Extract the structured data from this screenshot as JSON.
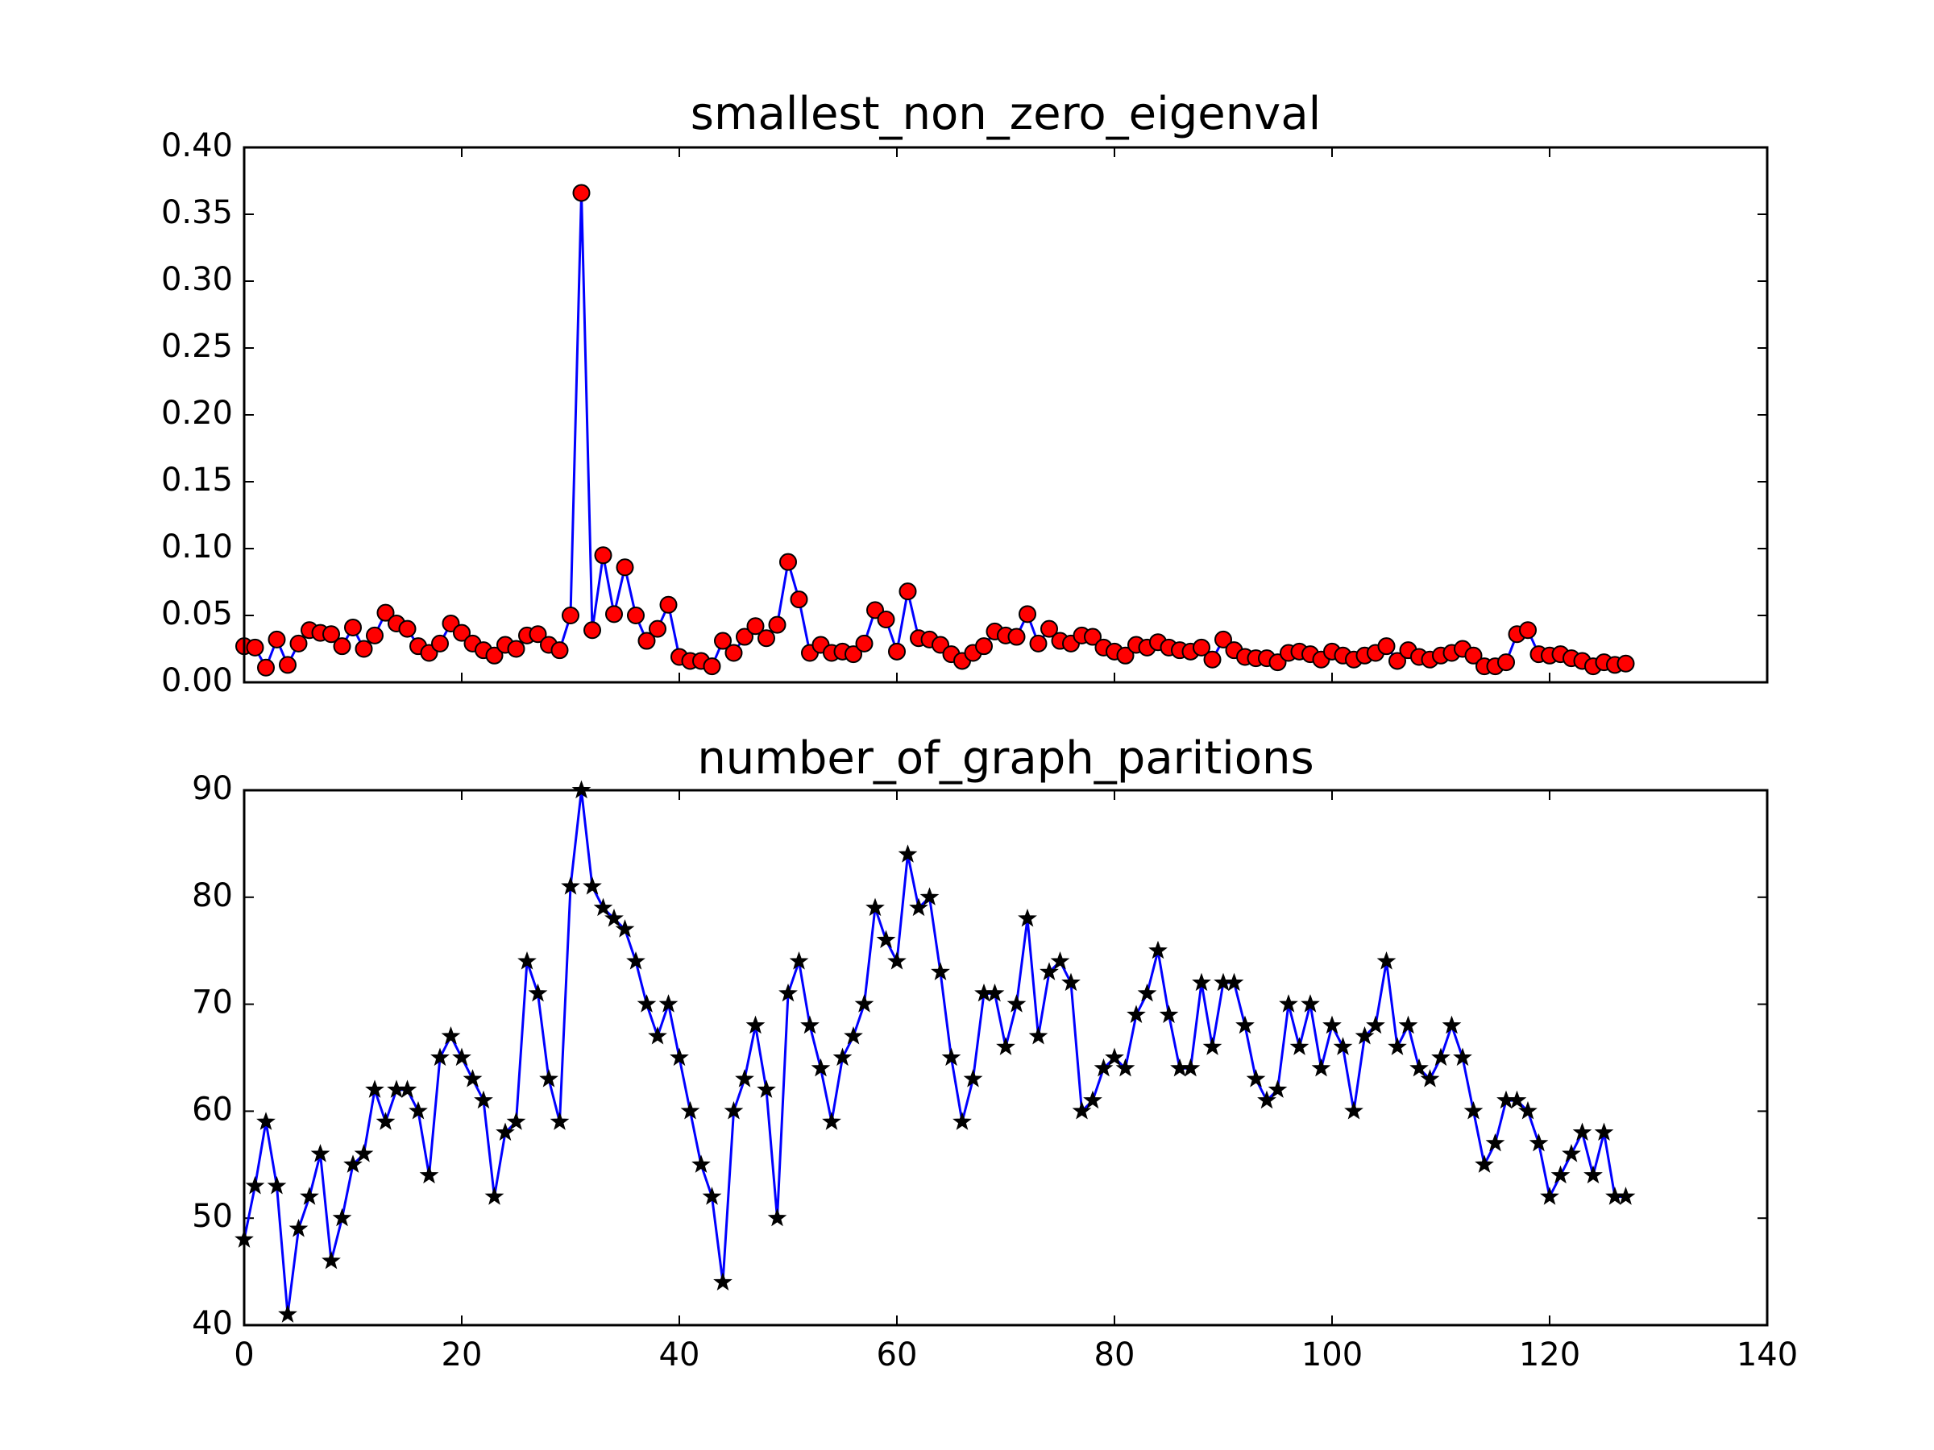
{
  "chart_data": [
    {
      "type": "line",
      "title": "smallest_non_zero_eigenval",
      "xlabel": "",
      "ylabel": "",
      "xlim": [
        0,
        140
      ],
      "ylim": [
        0,
        0.4
      ],
      "xticks": [
        0,
        20,
        40,
        60,
        80,
        100,
        120,
        140
      ],
      "yticks": [
        "0.00",
        "0.05",
        "0.10",
        "0.15",
        "0.20",
        "0.25",
        "0.30",
        "0.35",
        "0.40"
      ],
      "show_xtick_labels": false,
      "marker": "circle",
      "line_color": "#0000ff",
      "marker_color": "#ff0000",
      "grid": false,
      "series": [
        {
          "x": [
            0,
            1,
            2,
            3,
            4,
            5,
            6,
            7,
            8,
            9,
            10,
            11,
            12,
            13,
            14,
            15,
            16,
            17,
            18,
            19,
            20,
            21,
            22,
            23,
            24,
            25,
            26,
            27,
            28,
            29,
            30,
            31,
            32,
            33,
            34,
            35,
            36,
            37,
            38,
            39,
            40,
            41,
            42,
            43,
            44,
            45,
            46,
            47,
            48,
            49,
            50,
            51,
            52,
            53,
            54,
            55,
            56,
            57,
            58,
            59,
            60,
            61,
            62,
            63,
            64,
            65,
            66,
            67,
            68,
            69,
            70,
            71,
            72,
            73,
            74,
            75,
            76,
            77,
            78,
            79,
            80,
            81,
            82,
            83,
            84,
            85,
            86,
            87,
            88,
            89,
            90,
            91,
            92,
            93,
            94,
            95,
            96,
            97,
            98,
            99,
            100,
            101,
            102,
            103,
            104,
            105,
            106,
            107,
            108,
            109,
            110,
            111,
            112,
            113,
            114,
            115,
            116,
            117,
            118,
            119,
            120,
            121,
            122,
            123,
            124,
            125,
            126,
            127
          ],
          "y": [
            0.027,
            0.026,
            0.011,
            0.032,
            0.013,
            0.029,
            0.039,
            0.037,
            0.036,
            0.027,
            0.041,
            0.025,
            0.035,
            0.052,
            0.044,
            0.04,
            0.027,
            0.022,
            0.029,
            0.044,
            0.037,
            0.029,
            0.024,
            0.02,
            0.028,
            0.025,
            0.035,
            0.036,
            0.028,
            0.024,
            0.05,
            0.366,
            0.039,
            0.095,
            0.051,
            0.086,
            0.05,
            0.031,
            0.04,
            0.058,
            0.019,
            0.016,
            0.016,
            0.012,
            0.031,
            0.022,
            0.034,
            0.042,
            0.033,
            0.043,
            0.09,
            0.062,
            0.022,
            0.028,
            0.022,
            0.023,
            0.021,
            0.029,
            0.054,
            0.047,
            0.023,
            0.068,
            0.033,
            0.032,
            0.028,
            0.021,
            0.016,
            0.022,
            0.027,
            0.038,
            0.035,
            0.034,
            0.051,
            0.029,
            0.04,
            0.031,
            0.029,
            0.035,
            0.034,
            0.026,
            0.023,
            0.02,
            0.028,
            0.026,
            0.03,
            0.026,
            0.024,
            0.023,
            0.026,
            0.017,
            0.032,
            0.024,
            0.019,
            0.018,
            0.018,
            0.015,
            0.022,
            0.023,
            0.021,
            0.017,
            0.023,
            0.02,
            0.017,
            0.02,
            0.022,
            0.027,
            0.016,
            0.024,
            0.019,
            0.017,
            0.02,
            0.022,
            0.025,
            0.02,
            0.012,
            0.012,
            0.015,
            0.036,
            0.039,
            0.021,
            0.02,
            0.021,
            0.018,
            0.016,
            0.012,
            0.015,
            0.013,
            0.014
          ]
        }
      ]
    },
    {
      "type": "line",
      "title": "number_of_graph_paritions",
      "xlabel": "",
      "ylabel": "",
      "xlim": [
        0,
        140
      ],
      "ylim": [
        40,
        90
      ],
      "xticks": [
        "0",
        "20",
        "40",
        "60",
        "80",
        "100",
        "120",
        "140"
      ],
      "yticks": [
        "40",
        "50",
        "60",
        "70",
        "80",
        "90"
      ],
      "show_xtick_labels": true,
      "marker": "star",
      "line_color": "#0000ff",
      "marker_color": "#000000",
      "grid": false,
      "series": [
        {
          "x": [
            0,
            1,
            2,
            3,
            4,
            5,
            6,
            7,
            8,
            9,
            10,
            11,
            12,
            13,
            14,
            15,
            16,
            17,
            18,
            19,
            20,
            21,
            22,
            23,
            24,
            25,
            26,
            27,
            28,
            29,
            30,
            31,
            32,
            33,
            34,
            35,
            36,
            37,
            38,
            39,
            40,
            41,
            42,
            43,
            44,
            45,
            46,
            47,
            48,
            49,
            50,
            51,
            52,
            53,
            54,
            55,
            56,
            57,
            58,
            59,
            60,
            61,
            62,
            63,
            64,
            65,
            66,
            67,
            68,
            69,
            70,
            71,
            72,
            73,
            74,
            75,
            76,
            77,
            78,
            79,
            80,
            81,
            82,
            83,
            84,
            85,
            86,
            87,
            88,
            89,
            90,
            91,
            92,
            93,
            94,
            95,
            96,
            97,
            98,
            99,
            100,
            101,
            102,
            103,
            104,
            105,
            106,
            107,
            108,
            109,
            110,
            111,
            112,
            113,
            114,
            115,
            116,
            117,
            118,
            119,
            120,
            121,
            122,
            123,
            124,
            125,
            126,
            127
          ],
          "y": [
            48,
            53,
            59,
            53,
            41,
            49,
            52,
            56,
            46,
            50,
            55,
            56,
            62,
            59,
            62,
            62,
            60,
            54,
            65,
            67,
            65,
            63,
            61,
            52,
            58,
            59,
            74,
            71,
            63,
            59,
            81,
            90,
            81,
            79,
            78,
            77,
            74,
            70,
            67,
            70,
            65,
            60,
            55,
            52,
            44,
            60,
            63,
            68,
            62,
            50,
            71,
            74,
            68,
            64,
            59,
            65,
            67,
            70,
            79,
            76,
            74,
            84,
            79,
            80,
            73,
            65,
            59,
            63,
            71,
            71,
            66,
            70,
            78,
            67,
            73,
            74,
            72,
            60,
            61,
            64,
            65,
            64,
            69,
            71,
            75,
            69,
            64,
            64,
            72,
            66,
            72,
            72,
            68,
            63,
            61,
            62,
            70,
            66,
            70,
            64,
            68,
            66,
            60,
            67,
            68,
            74,
            66,
            68,
            64,
            63,
            65,
            68,
            65,
            60,
            55,
            57,
            61,
            61,
            60,
            57,
            52,
            54,
            56,
            58,
            54,
            58,
            52,
            52
          ]
        }
      ]
    }
  ]
}
